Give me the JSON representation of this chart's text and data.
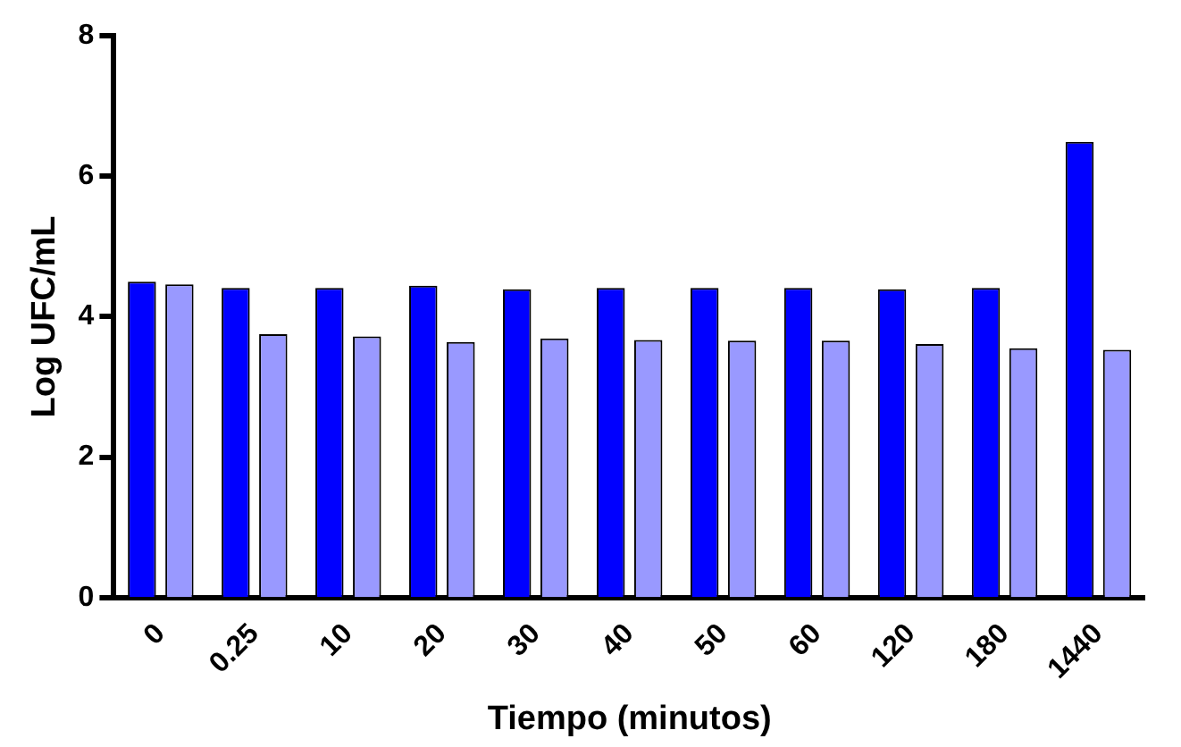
{
  "chart_data": {
    "type": "bar",
    "xlabel": "Tiempo (minutos)",
    "ylabel": "Log UFC/mL",
    "categories": [
      "0",
      "0.25",
      "10",
      "20",
      "30",
      "40",
      "50",
      "60",
      "120",
      "180",
      "1440"
    ],
    "series": [
      {
        "color": "#0000ff",
        "values": [
          4.5,
          4.41,
          4.41,
          4.44,
          4.39,
          4.41,
          4.41,
          4.41,
          4.39,
          4.41,
          6.49
        ]
      },
      {
        "color": "#9999ff",
        "values": [
          4.46,
          3.75,
          3.72,
          3.64,
          3.69,
          3.67,
          3.66,
          3.66,
          3.61,
          3.55,
          3.53
        ]
      }
    ],
    "ylim": [
      0,
      8
    ],
    "yticks": [
      0,
      2,
      4,
      6,
      8
    ],
    "grid": false,
    "legend": false
  }
}
